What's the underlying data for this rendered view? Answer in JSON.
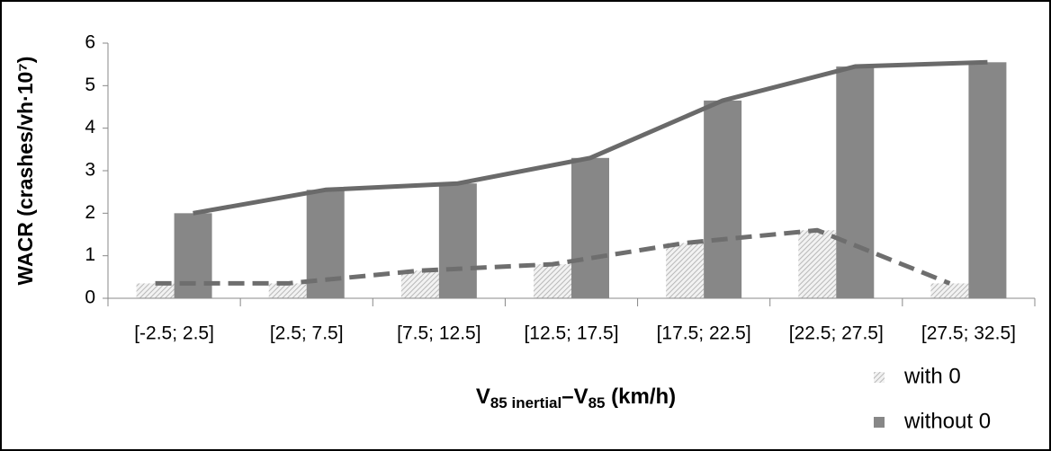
{
  "chart_data": {
    "type": "bar",
    "y_label": "WACR (crashes/vh·10⁷)",
    "x_label": [
      "V",
      "85 inertial",
      "–V",
      "85",
      " (km/h)"
    ],
    "categories": [
      "[-2.5; 2.5]",
      "[2.5; 7.5]",
      "[7.5; 12.5]",
      "[12.5; 17.5]",
      "[17.5; 22.5]",
      "[22.5; 27.5]",
      "[27.5; 32.5]"
    ],
    "series": [
      {
        "name": "with 0",
        "color": "#d4d4d4",
        "line_color": "#6e6e6e",
        "line_style": "dashed",
        "values": [
          0.35,
          0.35,
          0.65,
          0.8,
          1.3,
          1.6,
          0.35
        ]
      },
      {
        "name": "without 0",
        "color": "#878787",
        "line_color": "#6a6a6a",
        "line_style": "solid",
        "values": [
          2.0,
          2.55,
          2.7,
          3.3,
          4.65,
          5.45,
          5.55
        ]
      }
    ],
    "ylim": [
      0,
      6
    ],
    "yticks": [
      0,
      1,
      2,
      3,
      4,
      5,
      6
    ],
    "grid": false,
    "legend": "bottom-right"
  }
}
